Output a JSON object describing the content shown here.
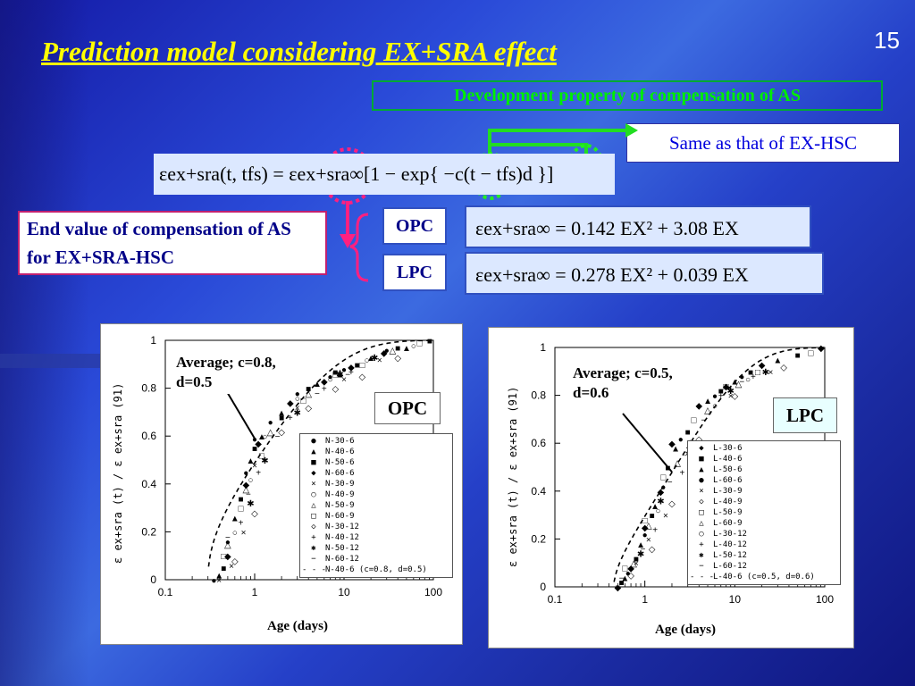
{
  "slide": {
    "title": "Prediction model considering EX+SRA effect",
    "page_number": "15",
    "subtitle": "Development property of compensation of AS",
    "note": "Same as that of EX-HSC",
    "end_value_label": "End value of compensation of AS for EX+SRA-HSC",
    "opc_tag": "OPC",
    "lpc_tag": "LPC",
    "main_formula": "εex+sra(t, tfs) = εex+sra∞[1 − exp{ −c(t − tfs)d }]",
    "opc_formula": "εex+sra∞ = 0.142 EX² + 3.08 EX",
    "lpc_formula": "εex+sra∞ = 0.278 EX² + 0.039 EX"
  },
  "chart_data": [
    {
      "type": "scatter",
      "panel_label": "OPC",
      "annotation": "Average; c=0.8, d=0.5",
      "xlabel": "Age (days)",
      "ylabel": "ε ex+sra (t) / ε ex+sra (91)",
      "xscale": "log",
      "xlim": [
        0.1,
        100
      ],
      "ylim": [
        0,
        1
      ],
      "xticks": [
        "0.1",
        "1",
        "10",
        "100"
      ],
      "yticks": [
        "0",
        "0.2",
        "0.4",
        "0.6",
        "0.8",
        "1"
      ],
      "model": {
        "c": 0.8,
        "d": 0.5,
        "tfs": 0.3,
        "name": "N-40-6 (c=0.8, d=0.5)"
      },
      "legend": [
        {
          "label": "N-30-6",
          "symbol": "●"
        },
        {
          "label": "N-40-6",
          "symbol": "▲"
        },
        {
          "label": "N-50-6",
          "symbol": "■"
        },
        {
          "label": "N-60-6",
          "symbol": "◆"
        },
        {
          "label": "N-30-9",
          "symbol": "×"
        },
        {
          "label": "N-40-9",
          "symbol": "○"
        },
        {
          "label": "N-50-9",
          "symbol": "△"
        },
        {
          "label": "N-60-9",
          "symbol": "□"
        },
        {
          "label": "N-30-12",
          "symbol": "◇"
        },
        {
          "label": "N-40-12",
          "symbol": "+"
        },
        {
          "label": "N-50-12",
          "symbol": "✱"
        },
        {
          "label": "N-60-12",
          "symbol": "−"
        },
        {
          "label": "N-40-6 (c=0.8, d=0.5)",
          "symbol": "- - -"
        }
      ],
      "series": [
        {
          "symbol": "●",
          "points": [
            [
              0.35,
              0.0
            ],
            [
              0.5,
              0.16
            ],
            [
              0.8,
              0.45
            ],
            [
              1,
              0.59
            ],
            [
              1.5,
              0.66
            ],
            [
              3,
              0.78
            ],
            [
              7,
              0.85
            ],
            [
              10,
              0.88
            ],
            [
              30,
              0.96
            ],
            [
              91,
              1.0
            ]
          ]
        },
        {
          "symbol": "▲",
          "points": [
            [
              0.4,
              0.02
            ],
            [
              0.6,
              0.26
            ],
            [
              0.9,
              0.5
            ],
            [
              1.2,
              0.6
            ],
            [
              2,
              0.7
            ],
            [
              5,
              0.82
            ],
            [
              9,
              0.86
            ],
            [
              20,
              0.93
            ],
            [
              50,
              0.97
            ]
          ]
        },
        {
          "symbol": "■",
          "points": [
            [
              0.45,
              0.05
            ],
            [
              0.7,
              0.34
            ],
            [
              1,
              0.55
            ],
            [
              2,
              0.68
            ],
            [
              4,
              0.8
            ],
            [
              8,
              0.87
            ],
            [
              14,
              0.9
            ],
            [
              40,
              0.97
            ],
            [
              91,
              1.0
            ]
          ]
        },
        {
          "symbol": "◆",
          "points": [
            [
              0.5,
              0.1
            ],
            [
              0.8,
              0.4
            ],
            [
              1.1,
              0.57
            ],
            [
              2.5,
              0.74
            ],
            [
              6,
              0.83
            ],
            [
              12,
              0.89
            ],
            [
              28,
              0.95
            ]
          ]
        },
        {
          "symbol": "×",
          "points": [
            [
              0.4,
              0.0
            ],
            [
              0.55,
              0.06
            ],
            [
              0.75,
              0.2
            ],
            [
              1,
              0.48
            ],
            [
              3,
              0.72
            ],
            [
              10,
              0.84
            ],
            [
              25,
              0.92
            ]
          ]
        },
        {
          "symbol": "○",
          "points": [
            [
              0.6,
              0.2
            ],
            [
              0.9,
              0.42
            ],
            [
              1.3,
              0.6
            ],
            [
              3,
              0.76
            ],
            [
              7,
              0.84
            ],
            [
              18,
              0.92
            ],
            [
              60,
              0.98
            ]
          ]
        },
        {
          "symbol": "△",
          "points": [
            [
              0.5,
              0.15
            ],
            [
              0.8,
              0.38
            ],
            [
              1.5,
              0.62
            ],
            [
              4,
              0.78
            ],
            [
              9,
              0.87
            ],
            [
              35,
              0.96
            ]
          ]
        },
        {
          "symbol": "□",
          "points": [
            [
              0.45,
              0.1
            ],
            [
              0.7,
              0.3
            ],
            [
              1.2,
              0.52
            ],
            [
              3.5,
              0.75
            ],
            [
              8,
              0.86
            ],
            [
              16,
              0.9
            ],
            [
              70,
              0.99
            ]
          ]
        },
        {
          "symbol": "◇",
          "points": [
            [
              0.6,
              0.08
            ],
            [
              1,
              0.28
            ],
            [
              2,
              0.62
            ],
            [
              4,
              0.72
            ],
            [
              8,
              0.8
            ],
            [
              16,
              0.85
            ],
            [
              40,
              0.93
            ]
          ]
        },
        {
          "symbol": "+",
          "points": [
            [
              0.7,
              0.24
            ],
            [
              1.1,
              0.45
            ],
            [
              2.5,
              0.68
            ],
            [
              6,
              0.8
            ],
            [
              12,
              0.87
            ]
          ]
        },
        {
          "symbol": "✱",
          "points": [
            [
              0.9,
              0.32
            ],
            [
              1.3,
              0.5
            ],
            [
              3,
              0.7
            ],
            [
              9,
              0.86
            ],
            [
              22,
              0.93
            ]
          ]
        },
        {
          "symbol": "−",
          "points": [
            [
              0.5,
              0.18
            ],
            [
              0.85,
              0.36
            ],
            [
              1.8,
              0.6
            ],
            [
              5,
              0.78
            ],
            [
              11,
              0.86
            ]
          ]
        }
      ]
    },
    {
      "type": "scatter",
      "panel_label": "LPC",
      "annotation": "Average; c=0.5, d=0.6",
      "xlabel": "Age (days)",
      "ylabel": "ε ex+sra (t) / ε ex+sra (91)",
      "xscale": "log",
      "xlim": [
        0.1,
        100
      ],
      "ylim": [
        0,
        1
      ],
      "xticks": [
        "0.1",
        "1",
        "10",
        "100"
      ],
      "yticks": [
        "0",
        "0.2",
        "0.4",
        "0.6",
        "0.8",
        "1"
      ],
      "model": {
        "c": 0.5,
        "d": 0.6,
        "tfs": 0.45,
        "name": "L-40-6 (c=0.5, d=0.6)"
      },
      "legend": [
        {
          "label": "L-30-6",
          "symbol": "◆"
        },
        {
          "label": "L-40-6",
          "symbol": "■"
        },
        {
          "label": "L-50-6",
          "symbol": "▲"
        },
        {
          "label": "L-60-6",
          "symbol": "●"
        },
        {
          "label": "L-30-9",
          "symbol": "×"
        },
        {
          "label": "L-40-9",
          "symbol": "◇"
        },
        {
          "label": "L-50-9",
          "symbol": "□"
        },
        {
          "label": "L-60-9",
          "symbol": "△"
        },
        {
          "label": "L-30-12",
          "symbol": "○"
        },
        {
          "label": "L-40-12",
          "symbol": "+"
        },
        {
          "label": "L-50-12",
          "symbol": "✱"
        },
        {
          "label": "L-60-12",
          "symbol": "−"
        },
        {
          "label": "L-40-6 (c=0.5, d=0.6)",
          "symbol": "- - -"
        }
      ],
      "series": [
        {
          "symbol": "◆",
          "points": [
            [
              0.5,
              0.0
            ],
            [
              0.7,
              0.08
            ],
            [
              1,
              0.25
            ],
            [
              1.5,
              0.4
            ],
            [
              2,
              0.6
            ],
            [
              4,
              0.76
            ],
            [
              8,
              0.84
            ],
            [
              20,
              0.93
            ],
            [
              91,
              1.0
            ]
          ]
        },
        {
          "symbol": "■",
          "points": [
            [
              0.55,
              0.02
            ],
            [
              0.8,
              0.12
            ],
            [
              1.2,
              0.3
            ],
            [
              1.8,
              0.5
            ],
            [
              3,
              0.65
            ],
            [
              7,
              0.82
            ],
            [
              15,
              0.9
            ],
            [
              50,
              0.97
            ]
          ]
        },
        {
          "symbol": "▲",
          "points": [
            [
              0.6,
              0.04
            ],
            [
              0.9,
              0.18
            ],
            [
              1.3,
              0.34
            ],
            [
              2.2,
              0.58
            ],
            [
              5,
              0.78
            ],
            [
              10,
              0.86
            ],
            [
              30,
              0.95
            ]
          ]
        },
        {
          "symbol": "●",
          "points": [
            [
              0.65,
              0.06
            ],
            [
              1,
              0.22
            ],
            [
              1.6,
              0.42
            ],
            [
              2.5,
              0.62
            ],
            [
              6,
              0.8
            ],
            [
              12,
              0.88
            ],
            [
              91,
              1.0
            ]
          ]
        },
        {
          "symbol": "×",
          "points": [
            [
              0.5,
              0.0
            ],
            [
              0.8,
              0.1
            ],
            [
              1.1,
              0.2
            ],
            [
              1.7,
              0.3
            ],
            [
              3,
              0.56
            ],
            [
              9,
              0.8
            ],
            [
              25,
              0.9
            ]
          ]
        },
        {
          "symbol": "◇",
          "points": [
            [
              0.7,
              0.05
            ],
            [
              1.2,
              0.16
            ],
            [
              2,
              0.35
            ],
            [
              4,
              0.62
            ],
            [
              10,
              0.8
            ],
            [
              35,
              0.92
            ]
          ]
        },
        {
          "symbol": "□",
          "points": [
            [
              0.6,
              0.08
            ],
            [
              1,
              0.28
            ],
            [
              1.6,
              0.46
            ],
            [
              3.5,
              0.7
            ],
            [
              8,
              0.84
            ],
            [
              18,
              0.9
            ],
            [
              70,
              0.98
            ]
          ]
        },
        {
          "symbol": "△",
          "points": [
            [
              0.75,
              0.1
            ],
            [
              1.1,
              0.26
            ],
            [
              2.3,
              0.52
            ],
            [
              5,
              0.74
            ],
            [
              11,
              0.85
            ]
          ]
        },
        {
          "symbol": "○",
          "points": [
            [
              0.8,
              0.12
            ],
            [
              1.4,
              0.32
            ],
            [
              2.8,
              0.56
            ],
            [
              6,
              0.76
            ],
            [
              14,
              0.87
            ]
          ]
        },
        {
          "symbol": "+",
          "points": [
            [
              0.7,
              0.08
            ],
            [
              1.3,
              0.24
            ],
            [
              2.6,
              0.48
            ],
            [
              7,
              0.8
            ],
            [
              16,
              0.88
            ]
          ]
        },
        {
          "symbol": "✱",
          "points": [
            [
              0.9,
              0.14
            ],
            [
              1.5,
              0.36
            ],
            [
              3.2,
              0.6
            ],
            [
              9,
              0.82
            ],
            [
              22,
              0.9
            ]
          ]
        },
        {
          "symbol": "−",
          "points": [
            [
              0.55,
              0.04
            ],
            [
              0.95,
              0.16
            ],
            [
              1.9,
              0.44
            ],
            [
              4.5,
              0.7
            ],
            [
              12,
              0.86
            ]
          ]
        }
      ]
    }
  ]
}
